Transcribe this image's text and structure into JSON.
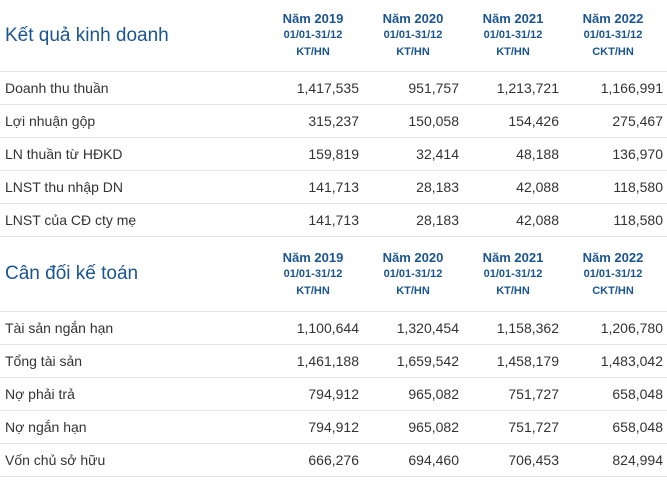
{
  "kqkd": {
    "title": "Kết quả kinh doanh",
    "columns": [
      {
        "year": "Năm 2019",
        "period": "01/01-31/12",
        "type": "KT/HN"
      },
      {
        "year": "Năm 2020",
        "period": "01/01-31/12",
        "type": "KT/HN"
      },
      {
        "year": "Năm 2021",
        "period": "01/01-31/12",
        "type": "KT/HN"
      },
      {
        "year": "Năm 2022",
        "period": "01/01-31/12",
        "type": "CKT/HN"
      }
    ],
    "rows": [
      {
        "label": "Doanh thu thuần",
        "values": [
          "1,417,535",
          "951,757",
          "1,213,721",
          "1,166,991"
        ]
      },
      {
        "label": "Lợi nhuận gộp",
        "values": [
          "315,237",
          "150,058",
          "154,426",
          "275,467"
        ]
      },
      {
        "label": "LN thuần từ HĐKD",
        "values": [
          "159,819",
          "32,414",
          "48,188",
          "136,970"
        ]
      },
      {
        "label": "LNST thu nhập DN",
        "values": [
          "141,713",
          "28,183",
          "42,088",
          "118,580"
        ]
      },
      {
        "label": "LNST của CĐ cty mẹ",
        "values": [
          "141,713",
          "28,183",
          "42,088",
          "118,580"
        ]
      }
    ]
  },
  "cdkt": {
    "title": "Cân đối kế toán",
    "columns": [
      {
        "year": "Năm 2019",
        "period": "01/01-31/12",
        "type": "KT/HN"
      },
      {
        "year": "Năm 2020",
        "period": "01/01-31/12",
        "type": "KT/HN"
      },
      {
        "year": "Năm 2021",
        "period": "01/01-31/12",
        "type": "KT/HN"
      },
      {
        "year": "Năm 2022",
        "period": "01/01-31/12",
        "type": "CKT/HN"
      }
    ],
    "rows": [
      {
        "label": "Tài sản ngắn hạn",
        "values": [
          "1,100,644",
          "1,320,454",
          "1,158,362",
          "1,206,780"
        ]
      },
      {
        "label": "Tổng tài sản",
        "values": [
          "1,461,188",
          "1,659,542",
          "1,458,179",
          "1,483,042"
        ]
      },
      {
        "label": "Nợ phải trả",
        "values": [
          "794,912",
          "965,082",
          "751,727",
          "658,048"
        ]
      },
      {
        "label": "Nợ ngắn hạn",
        "values": [
          "794,912",
          "965,082",
          "751,727",
          "658,048"
        ]
      },
      {
        "label": "Vốn chủ sở hữu",
        "values": [
          "666,276",
          "694,460",
          "706,453",
          "824,994"
        ]
      }
    ]
  },
  "colors": {
    "header_text": "#1b5590",
    "body_text": "#333333",
    "row_border": "#e4e4e4"
  }
}
